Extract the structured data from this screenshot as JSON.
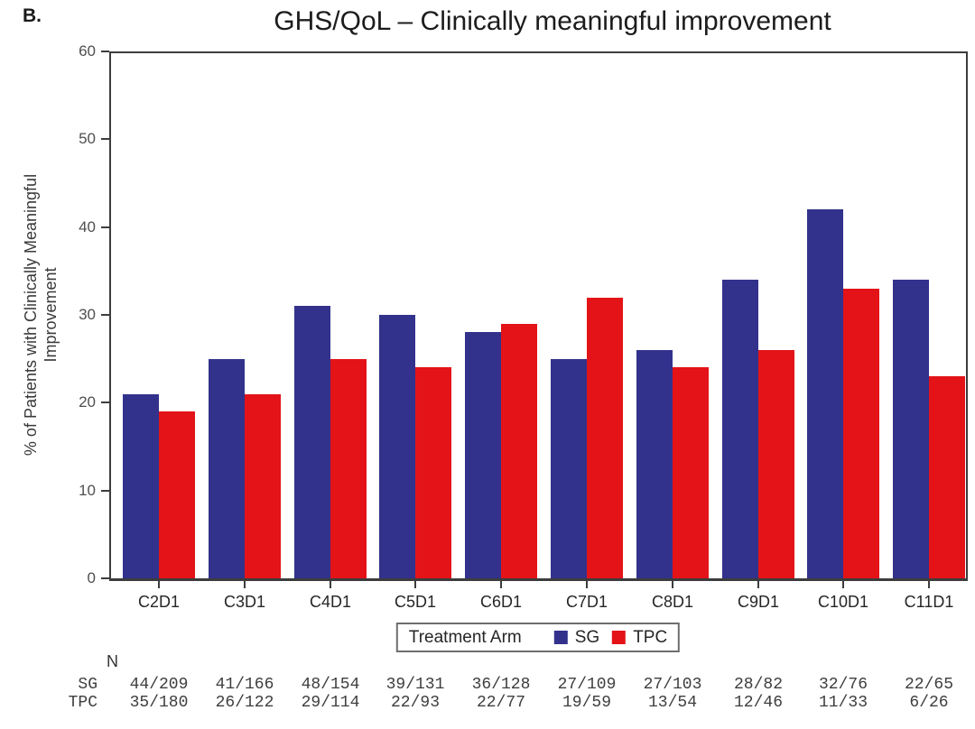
{
  "panel_label": "B.",
  "chart_data": {
    "type": "bar",
    "title": "GHS/QoL – Clinically meaningful improvement",
    "categories": [
      "C2D1",
      "C3D1",
      "C4D1",
      "C5D1",
      "C6D1",
      "C7D1",
      "C8D1",
      "C9D1",
      "C10D1",
      "C11D1"
    ],
    "series": [
      {
        "name": "SG",
        "color": "#32328C",
        "values": [
          21,
          25,
          31,
          30,
          28,
          25,
          26,
          34,
          42,
          34
        ]
      },
      {
        "name": "TPC",
        "color": "#E31318",
        "values": [
          19,
          21,
          25,
          24,
          29,
          32,
          24,
          26,
          33,
          23
        ]
      }
    ],
    "ylabel": "% of Patients with Clinically Meaningful Improvement",
    "ylabel_lines": [
      "% of Patients with Clinically Meaningful",
      "Improvement"
    ],
    "xlabel": "",
    "ylim": [
      0,
      60
    ],
    "yticks": [
      0,
      10,
      20,
      30,
      40,
      50,
      60
    ],
    "grid": false,
    "legend": {
      "title": "Treatment Arm",
      "position": "bottom",
      "items": [
        {
          "label": "SG",
          "color": "#32328C"
        },
        {
          "label": "TPC",
          "color": "#E31318"
        }
      ]
    },
    "n_table": {
      "header": "N",
      "rows": [
        {
          "label": "SG",
          "values": [
            "44/209",
            "41/166",
            "48/154",
            "39/131",
            "36/128",
            "27/109",
            "27/103",
            "28/82",
            "32/76",
            "22/65"
          ]
        },
        {
          "label": "TPC",
          "values": [
            "35/180",
            "26/122",
            "29/114",
            "22/93",
            "22/77",
            "19/59",
            "13/54",
            "12/46",
            "11/33",
            "6/26"
          ]
        }
      ]
    }
  }
}
